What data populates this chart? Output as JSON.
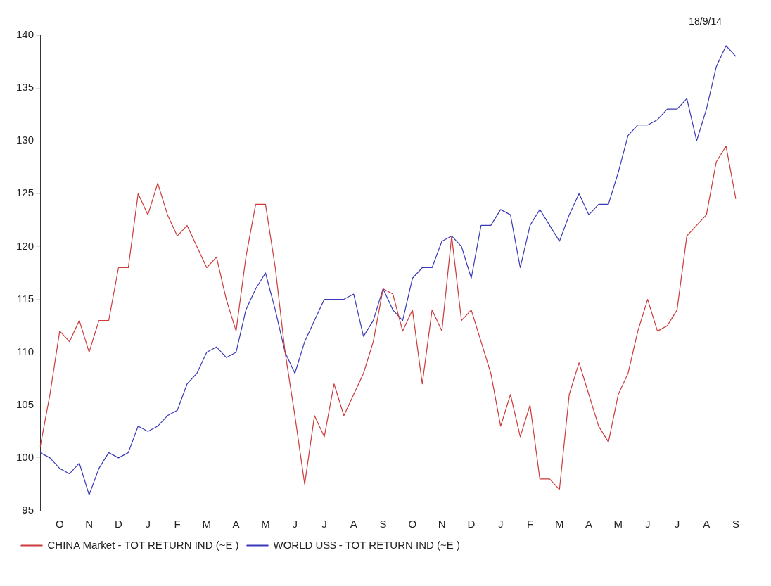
{
  "chart_data": {
    "type": "line",
    "categories": [
      null,
      null,
      "O",
      null,
      null,
      "N",
      null,
      null,
      "D",
      null,
      null,
      "J",
      null,
      null,
      "F",
      null,
      null,
      "M",
      null,
      null,
      "A",
      null,
      null,
      "M",
      null,
      null,
      "J",
      null,
      null,
      "J",
      null,
      null,
      "A",
      null,
      null,
      "S",
      null,
      null,
      "O",
      null,
      null,
      "N",
      null,
      null,
      "D",
      null,
      null,
      "J",
      null,
      null,
      "F",
      null,
      null,
      "M",
      null,
      null,
      "A",
      null,
      null,
      "M",
      null,
      null,
      "J",
      null,
      null,
      "J",
      null,
      null,
      "A",
      null,
      null,
      "S"
    ],
    "ylim": [
      95,
      140
    ],
    "yticks": [
      95,
      100,
      105,
      110,
      115,
      120,
      125,
      130,
      135,
      140
    ],
    "grid": false,
    "legend": "bottom",
    "marker": "none",
    "line_style": "solid",
    "annotations": [
      "18/9/14"
    ],
    "series": [
      {
        "name": "CHINA Market - TOT RETURN IND (~E )",
        "color": "#cc3a3a",
        "values": [
          101,
          106,
          112,
          111,
          113,
          110,
          113,
          113,
          118,
          118,
          125,
          123,
          126,
          123,
          121,
          122,
          120,
          118,
          119,
          115,
          112,
          119,
          124,
          124,
          118,
          110,
          104,
          97.5,
          104,
          102,
          107,
          104,
          106,
          108,
          111,
          116,
          115.5,
          112,
          114,
          107,
          114,
          112,
          121,
          113,
          114,
          111,
          108,
          103,
          106,
          102,
          105,
          98,
          98,
          97,
          106,
          109,
          106,
          103,
          101.5,
          106,
          108,
          112,
          115,
          112,
          112.5,
          114,
          121,
          122,
          123,
          128,
          129.5,
          124.5
        ]
      },
      {
        "name": "WORLD US$ - TOT RETURN IND (~E )",
        "color": "#3838b8",
        "values": [
          100.5,
          100,
          99,
          98.5,
          99.5,
          96.5,
          99,
          100.5,
          100,
          100.5,
          103,
          102.5,
          103,
          104,
          104.5,
          107,
          108,
          110,
          110.5,
          109.5,
          110,
          114,
          116,
          117.5,
          114,
          110,
          108,
          111,
          113,
          115,
          115,
          115,
          115.5,
          111.5,
          113,
          116,
          114,
          113,
          117,
          118,
          118,
          120.5,
          121,
          120,
          117,
          122,
          122,
          123.5,
          123,
          118,
          122,
          123.5,
          122,
          120.5,
          123,
          125,
          123,
          124,
          124,
          127,
          130.5,
          131.5,
          131.5,
          132,
          133,
          133,
          134,
          130,
          133,
          137,
          139,
          138
        ]
      }
    ]
  }
}
